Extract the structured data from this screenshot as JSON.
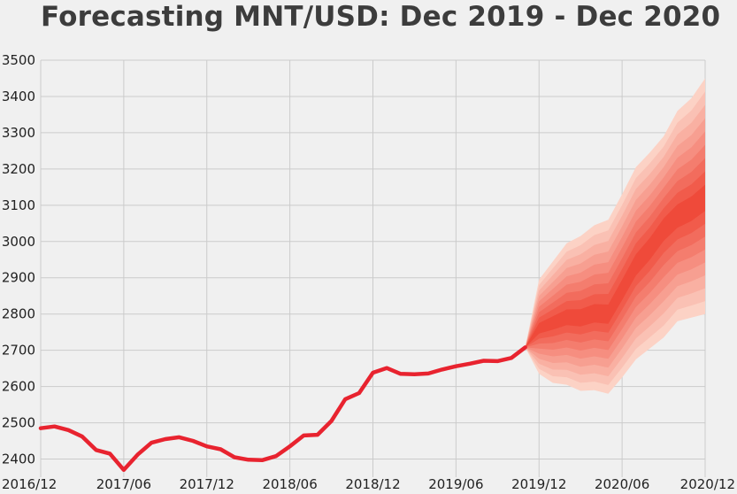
{
  "chart_data": {
    "type": "line",
    "title": "Forecasting MNT/USD: Dec 2019 - Dec 2020",
    "xlabel": "",
    "ylabel": "",
    "ylim": [
      2350,
      3500
    ],
    "xlim": [
      "2016-12",
      "2020-12"
    ],
    "grid": true,
    "x_ticks": [
      "2016/12",
      "2017/06",
      "2017/12",
      "2018/06",
      "2018/12",
      "2019/06",
      "2019/12",
      "2020/06",
      "2020/12"
    ],
    "y_ticks": [
      2400,
      2500,
      2600,
      2700,
      2800,
      2900,
      3000,
      3100,
      3200,
      3300,
      3400,
      3500
    ],
    "colors": {
      "line": "#e8232f",
      "band_light": "#fcd2c5",
      "band_dark": "#ef4a3a"
    },
    "series": [
      {
        "x": [
          "2016-12",
          "2017-01",
          "2017-02",
          "2017-03",
          "2017-04",
          "2017-05",
          "2017-06",
          "2017-07",
          "2017-08",
          "2017-09",
          "2017-10",
          "2017-11",
          "2017-12",
          "2018-01",
          "2018-02",
          "2018-03",
          "2018-04",
          "2018-05",
          "2018-06",
          "2018-07",
          "2018-08",
          "2018-09",
          "2018-10",
          "2018-11",
          "2018-12",
          "2019-01",
          "2019-02",
          "2019-03",
          "2019-04",
          "2019-05",
          "2019-06",
          "2019-07",
          "2019-08",
          "2019-09",
          "2019-10",
          "2019-11"
        ],
        "values": [
          2485,
          2490,
          2480,
          2462,
          2425,
          2415,
          2370,
          2412,
          2445,
          2455,
          2460,
          2450,
          2435,
          2427,
          2405,
          2398,
          2397,
          2408,
          2435,
          2465,
          2467,
          2505,
          2565,
          2582,
          2638,
          2651,
          2635,
          2634,
          2636,
          2647,
          2656,
          2663,
          2671,
          2670,
          2679,
          2708
        ]
      }
    ],
    "forecast": {
      "x": [
        "2019-11",
        "2019-12",
        "2020-01",
        "2020-02",
        "2020-03",
        "2020-04",
        "2020-05",
        "2020-06",
        "2020-07",
        "2020-08",
        "2020-09",
        "2020-10",
        "2020-11",
        "2020-12"
      ],
      "median": [
        2708,
        2760,
        2775,
        2790,
        2788,
        2800,
        2797,
        2865,
        2935,
        2980,
        3035,
        3070,
        3090,
        3120
      ],
      "lower": [
        2708,
        2635,
        2610,
        2605,
        2588,
        2590,
        2580,
        2625,
        2675,
        2705,
        2735,
        2780,
        2790,
        2800
      ],
      "upper": [
        2708,
        2895,
        2945,
        2995,
        3015,
        3045,
        3060,
        3130,
        3205,
        3245,
        3290,
        3360,
        3395,
        3450
      ]
    }
  }
}
